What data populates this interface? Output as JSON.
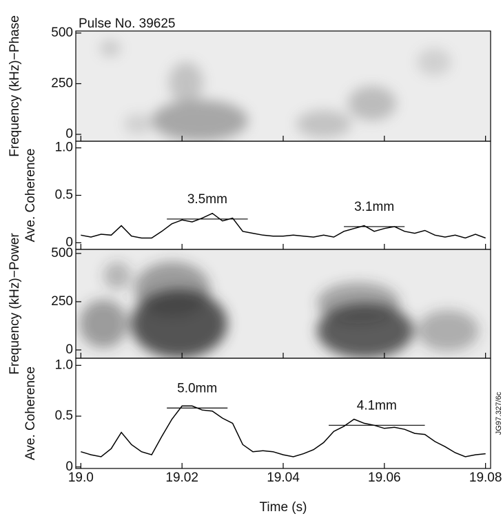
{
  "chart_data": [
    {
      "type": "spectrogram",
      "title": "Pulse No. 39625",
      "ylabel": "Frequency (kHz)−Phase",
      "xlim": [
        18.999,
        19.081
      ],
      "ylim": [
        -34,
        510
      ],
      "yticks": [
        0,
        250,
        500
      ]
    },
    {
      "type": "line",
      "ylabel": "Ave. Coherence",
      "xlim": [
        18.999,
        19.081
      ],
      "ylim": [
        -0.07,
        1.07
      ],
      "yticks": [
        0,
        0.5,
        {
          "value": 1,
          "label": "1.0"
        }
      ],
      "x": [
        19.0,
        19.002,
        19.004,
        19.006,
        19.008,
        19.01,
        19.012,
        19.014,
        19.016,
        19.018,
        19.02,
        19.022,
        19.024,
        19.026,
        19.028,
        19.03,
        19.032,
        19.034,
        19.036,
        19.038,
        19.04,
        19.042,
        19.044,
        19.046,
        19.048,
        19.05,
        19.052,
        19.054,
        19.056,
        19.058,
        19.06,
        19.062,
        19.064,
        19.066,
        19.068,
        19.07,
        19.072,
        19.074,
        19.076,
        19.078,
        19.08
      ],
      "values": [
        0.08,
        0.06,
        0.09,
        0.08,
        0.18,
        0.07,
        0.05,
        0.05,
        0.12,
        0.2,
        0.24,
        0.22,
        0.26,
        0.31,
        0.23,
        0.26,
        0.12,
        0.1,
        0.08,
        0.07,
        0.07,
        0.08,
        0.07,
        0.06,
        0.08,
        0.06,
        0.12,
        0.15,
        0.18,
        0.12,
        0.15,
        0.17,
        0.12,
        0.1,
        0.13,
        0.08,
        0.06,
        0.08,
        0.05,
        0.09,
        0.05
      ],
      "color": "#000000",
      "annotations": [
        {
          "text": "3.5mm",
          "x": [
            19.017,
            19.033
          ],
          "y": 0.25
        },
        {
          "text": "3.1mm",
          "x": [
            19.052,
            19.064
          ],
          "y": 0.17
        }
      ]
    },
    {
      "type": "spectrogram",
      "ylabel": "Frequency (kHz)−Power",
      "xlim": [
        18.999,
        19.081
      ],
      "ylim": [
        -43,
        521
      ],
      "yticks": [
        0,
        250,
        500
      ]
    },
    {
      "type": "line",
      "ylabel": "Ave. Coherence",
      "xlabel": "Time (s)",
      "note": "JG97.327/6c",
      "xlim": [
        18.999,
        19.081
      ],
      "ylim": [
        -0.015,
        1.07
      ],
      "yticks": [
        0,
        0.5,
        {
          "value": 1,
          "label": "1.0"
        }
      ],
      "xticks": [
        {
          "value": 19,
          "label": "19.0"
        },
        19.02,
        19.04,
        19.06,
        19.08
      ],
      "x": [
        19.0,
        19.002,
        19.004,
        19.006,
        19.008,
        19.01,
        19.012,
        19.014,
        19.016,
        19.018,
        19.02,
        19.022,
        19.024,
        19.026,
        19.028,
        19.03,
        19.032,
        19.034,
        19.036,
        19.038,
        19.04,
        19.042,
        19.044,
        19.046,
        19.048,
        19.05,
        19.052,
        19.054,
        19.056,
        19.058,
        19.06,
        19.062,
        19.064,
        19.066,
        19.068,
        19.07,
        19.072,
        19.074,
        19.076,
        19.078,
        19.08
      ],
      "values": [
        0.15,
        0.12,
        0.1,
        0.18,
        0.34,
        0.22,
        0.15,
        0.12,
        0.3,
        0.47,
        0.6,
        0.6,
        0.56,
        0.55,
        0.48,
        0.43,
        0.22,
        0.15,
        0.16,
        0.15,
        0.12,
        0.1,
        0.13,
        0.17,
        0.24,
        0.35,
        0.4,
        0.47,
        0.43,
        0.41,
        0.38,
        0.39,
        0.37,
        0.33,
        0.32,
        0.25,
        0.2,
        0.14,
        0.1,
        0.12,
        0.13
      ],
      "color": "#000000",
      "annotations": [
        {
          "text": "5.0mm",
          "x": [
            19.017,
            19.029
          ],
          "y": 0.58
        },
        {
          "text": "4.1mm",
          "x": [
            19.049,
            19.068
          ],
          "y": 0.41
        }
      ]
    }
  ]
}
